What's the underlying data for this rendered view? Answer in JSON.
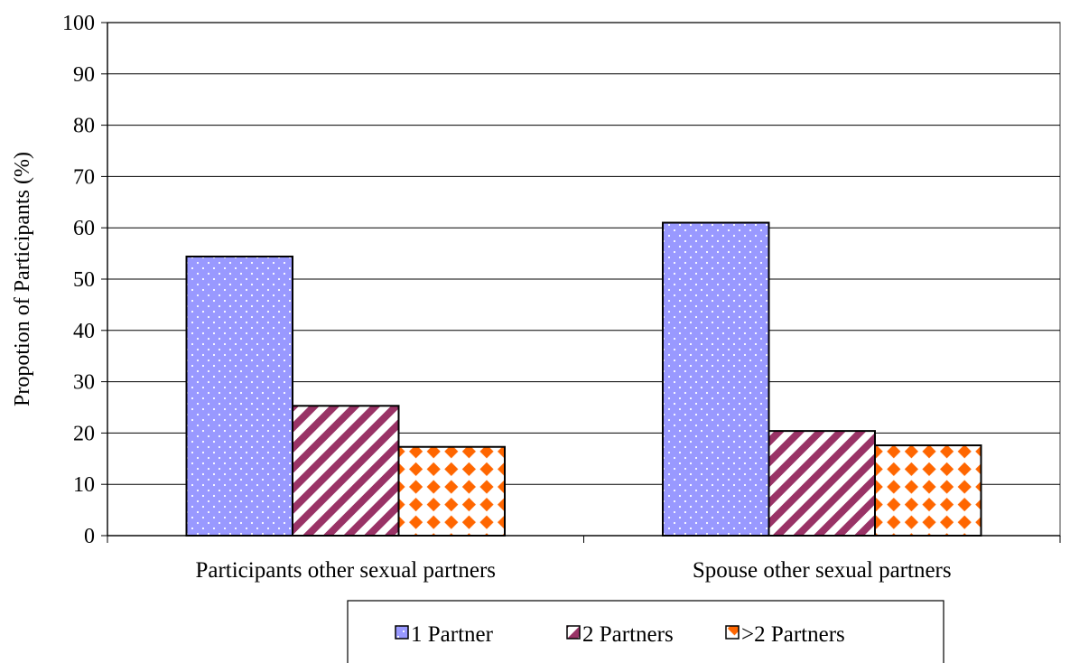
{
  "chart_data": {
    "type": "bar",
    "title": "",
    "xlabel": "",
    "ylabel": "Propotion of Participants (%)",
    "ylim": [
      0,
      100
    ],
    "yticks": [
      0,
      10,
      20,
      30,
      40,
      50,
      60,
      70,
      80,
      90,
      100
    ],
    "grid": "horizontal",
    "legend_position": "bottom",
    "categories": [
      "Participants other sexual partners",
      "Spouse other sexual partners"
    ],
    "series": [
      {
        "name": "1 Partner",
        "values": [
          54.4,
          61.0
        ],
        "color": "#9999ff",
        "pattern": "dots"
      },
      {
        "name": "2 Partners",
        "values": [
          25.3,
          20.4
        ],
        "color": "#993366",
        "pattern": "diagonal-stripes"
      },
      {
        "name": ">2 Partners",
        "values": [
          17.3,
          17.6
        ],
        "color": "#ff6600",
        "pattern": "diamonds"
      }
    ]
  }
}
